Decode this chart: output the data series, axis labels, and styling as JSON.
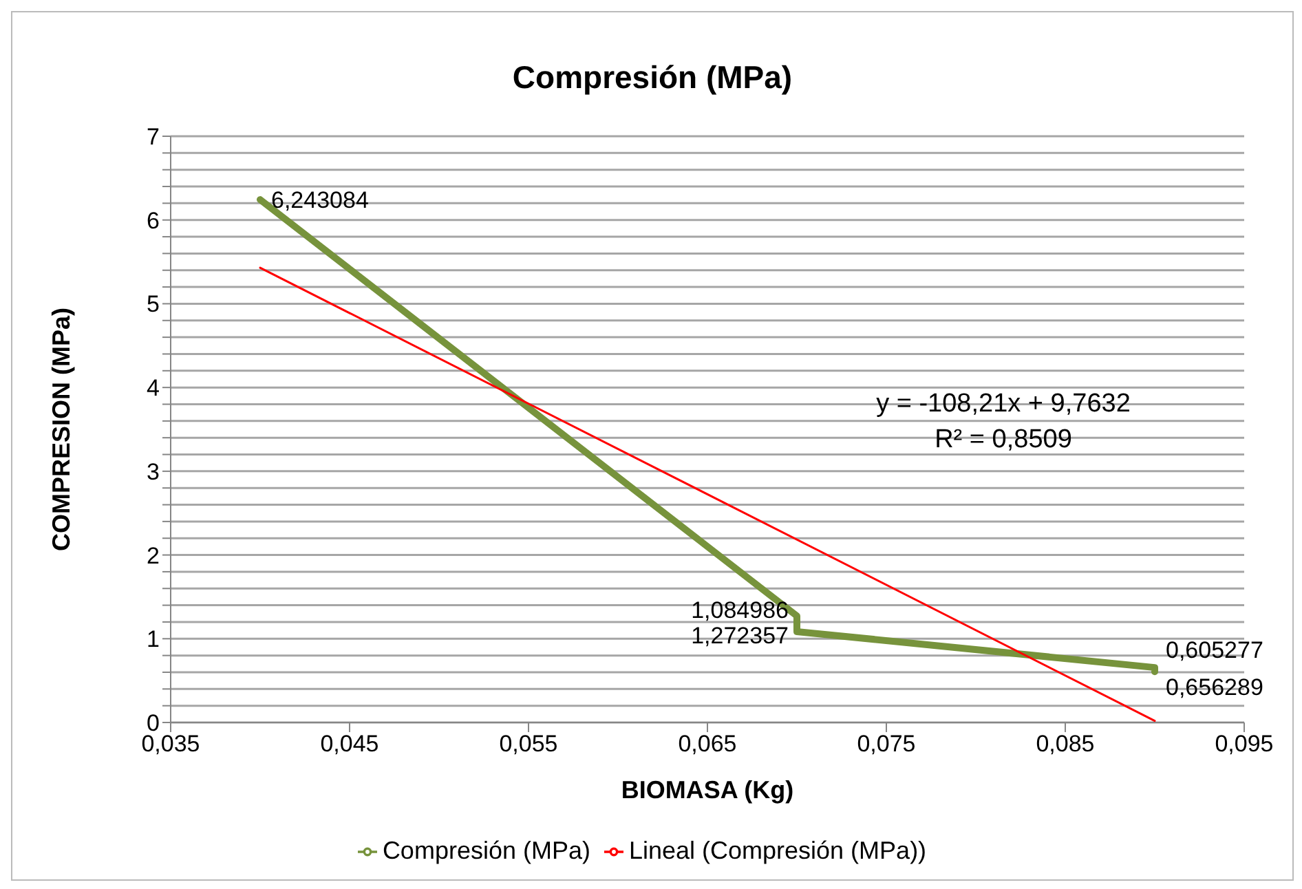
{
  "chart_data": {
    "type": "line",
    "title": "Compresión (MPa)",
    "xlabel": "BIOMASA (Kg)",
    "ylabel": "COMPRESION (MPa)",
    "xlim": [
      0.035,
      0.095
    ],
    "xticks": [
      {
        "value": 0.035,
        "label": "0,035"
      },
      {
        "value": 0.045,
        "label": "0,045"
      },
      {
        "value": 0.055,
        "label": "0,055"
      },
      {
        "value": 0.065,
        "label": "0,065"
      },
      {
        "value": 0.075,
        "label": "0,075"
      },
      {
        "value": 0.085,
        "label": "0,085"
      },
      {
        "value": 0.095,
        "label": "0,095"
      }
    ],
    "ylim": [
      0,
      7
    ],
    "yticks": [
      0,
      {
        "value": 0.2,
        "label": null
      },
      {
        "value": 0.4,
        "label": null
      },
      {
        "value": 0.6,
        "label": null
      },
      {
        "value": 0.8,
        "label": null
      },
      1,
      {
        "value": 1.2,
        "label": null
      },
      {
        "value": 1.4,
        "label": null
      },
      {
        "value": 1.6,
        "label": null
      },
      {
        "value": 1.8,
        "label": null
      },
      2,
      {
        "value": 2.2,
        "label": null
      },
      {
        "value": 2.4,
        "label": null
      },
      {
        "value": 2.6,
        "label": null
      },
      {
        "value": 2.8,
        "label": null
      },
      3,
      {
        "value": 3.2,
        "label": null
      },
      {
        "value": 3.4,
        "label": null
      },
      {
        "value": 3.6,
        "label": null
      },
      {
        "value": 3.8,
        "label": null
      },
      4,
      {
        "value": 4.2,
        "label": null
      },
      {
        "value": 4.4,
        "label": null
      },
      {
        "value": 4.6,
        "label": null
      },
      {
        "value": 4.8,
        "label": null
      },
      5,
      {
        "value": 5.2,
        "label": null
      },
      {
        "value": 5.4,
        "label": null
      },
      {
        "value": 5.6,
        "label": null
      },
      {
        "value": 5.8,
        "label": null
      },
      6,
      {
        "value": 6.2,
        "label": null
      },
      {
        "value": 6.4,
        "label": null
      },
      {
        "value": 6.6,
        "label": null
      },
      {
        "value": 6.8,
        "label": null
      },
      7
    ],
    "grid": "y",
    "legend": "bottom",
    "marker": "none",
    "line_style": "solid",
    "series": [
      {
        "name": "Compresión (MPa)",
        "type": "line",
        "color": "#77933c",
        "x": [
          0.04,
          0.07,
          0.07,
          0.09,
          0.09
        ],
        "values": [
          6.243084,
          1.272357,
          1.084986,
          0.656289,
          0.605277
        ],
        "value_labels": [
          "6,243084",
          "1,272357",
          "1,084986",
          "0,656289",
          "0,605277"
        ]
      },
      {
        "name": "Lineal (Compresión (MPa))",
        "type": "line",
        "color": "#ff0000",
        "x": [
          0.04,
          0.09
        ],
        "values": [
          5.43,
          0.02
        ]
      }
    ],
    "annotations": [
      "y = -108,21x + 9,7632",
      "R² = 0,8509"
    ]
  }
}
